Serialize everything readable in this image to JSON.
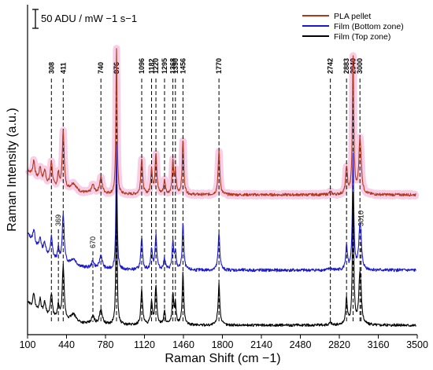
{
  "chart_data": {
    "type": "line",
    "xlabel": "Raman Shift (cm −1)",
    "ylabel": "Raman Intensity (a.u.)",
    "xlim": [
      100,
      3500
    ],
    "xticks": [
      100,
      440,
      780,
      1120,
      1460,
      1800,
      2140,
      2480,
      2820,
      3160,
      3500
    ],
    "scale_bar_label": "50 ADU / mW −1 s−1",
    "legend_position": "top-right",
    "highlight_color": "#f5b8dc",
    "series": [
      {
        "name": "PLA pellet",
        "color": "#b3381a",
        "offset": 2.0
      },
      {
        "name": "Film (Bottom zone)",
        "color": "#1a1acc",
        "offset": 1.0
      },
      {
        "name": "Film (Top zone)",
        "color": "#000000",
        "offset": 0.0
      }
    ],
    "peaks": [
      {
        "label": "308",
        "x": 308
      },
      {
        "label": "411",
        "x": 411
      },
      {
        "label": "740",
        "x": 740
      },
      {
        "label": "876",
        "x": 876
      },
      {
        "label": "1096",
        "x": 1096
      },
      {
        "label": "1182",
        "x": 1182
      },
      {
        "label": "1220",
        "x": 1220
      },
      {
        "label": "1295",
        "x": 1295
      },
      {
        "label": "1368",
        "x": 1368
      },
      {
        "label": "1390",
        "x": 1390
      },
      {
        "label": "1456",
        "x": 1456
      },
      {
        "label": "1770",
        "x": 1770
      },
      {
        "label": "2742",
        "x": 2742
      },
      {
        "label": "2883",
        "x": 2883
      },
      {
        "label": "2940",
        "x": 2940
      },
      {
        "label": "3000",
        "x": 3000
      }
    ],
    "minor_peaks": [
      {
        "label": "369",
        "x": 369
      },
      {
        "label": "670",
        "x": 670
      },
      {
        "label": "3010",
        "x": 3010
      }
    ]
  }
}
